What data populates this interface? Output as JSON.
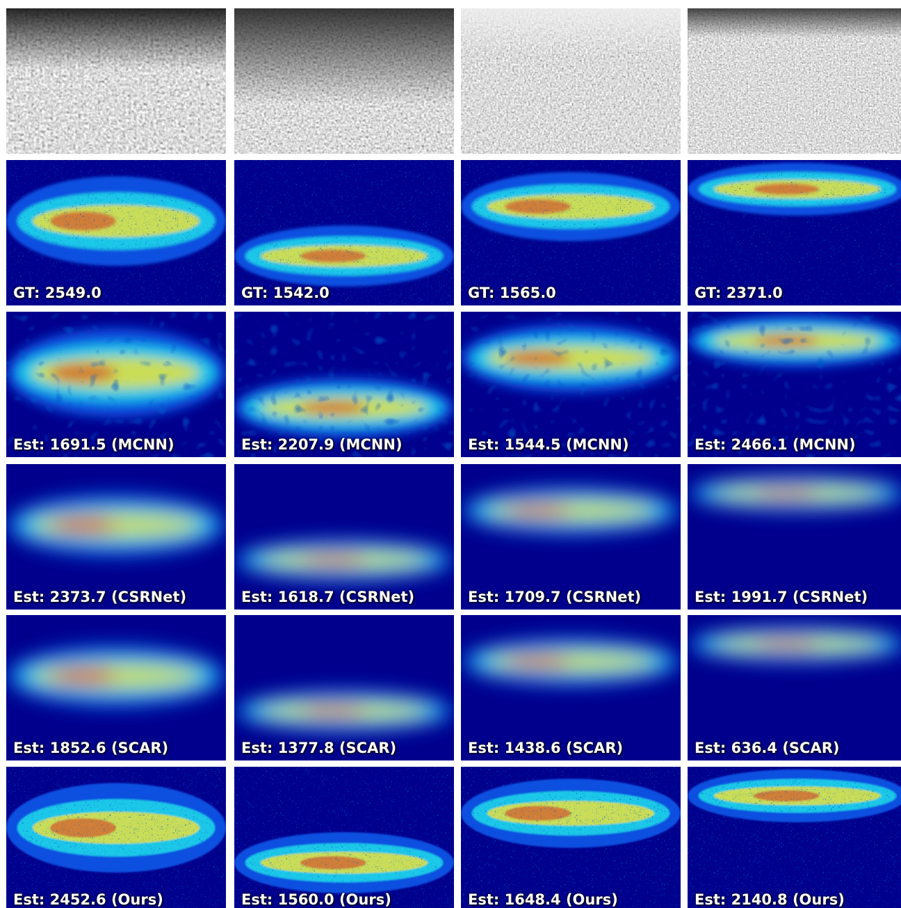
{
  "label_rows": [
    [
      "GT: 2549.0",
      "GT: 1542.0",
      "GT: 1565.0",
      "GT: 2371.0"
    ],
    [
      "Est: 1691.5 (MCNN)",
      "Est: 2207.9 (MCNN)",
      "Est: 1544.5 (MCNN)",
      "Est: 2466.1 (MCNN)"
    ],
    [
      "Est: 2373.7 (CSRNet)",
      "Est: 1618.7 (CSRNet)",
      "Est: 1709.7 (CSRNet)",
      "Est: 1991.7 (CSRNet)"
    ],
    [
      "Est: 1852.6 (SCAR)",
      "Est: 1377.8 (SCAR)",
      "Est: 1438.6 (SCAR)",
      "Est: 636.4 (SCAR)"
    ],
    [
      "Est: 2452.6 (Ours)",
      "Est: 1560.0 (Ours)",
      "Est: 1648.4 (Ours)",
      "Est: 2140.8 (Ours)"
    ]
  ]
}
